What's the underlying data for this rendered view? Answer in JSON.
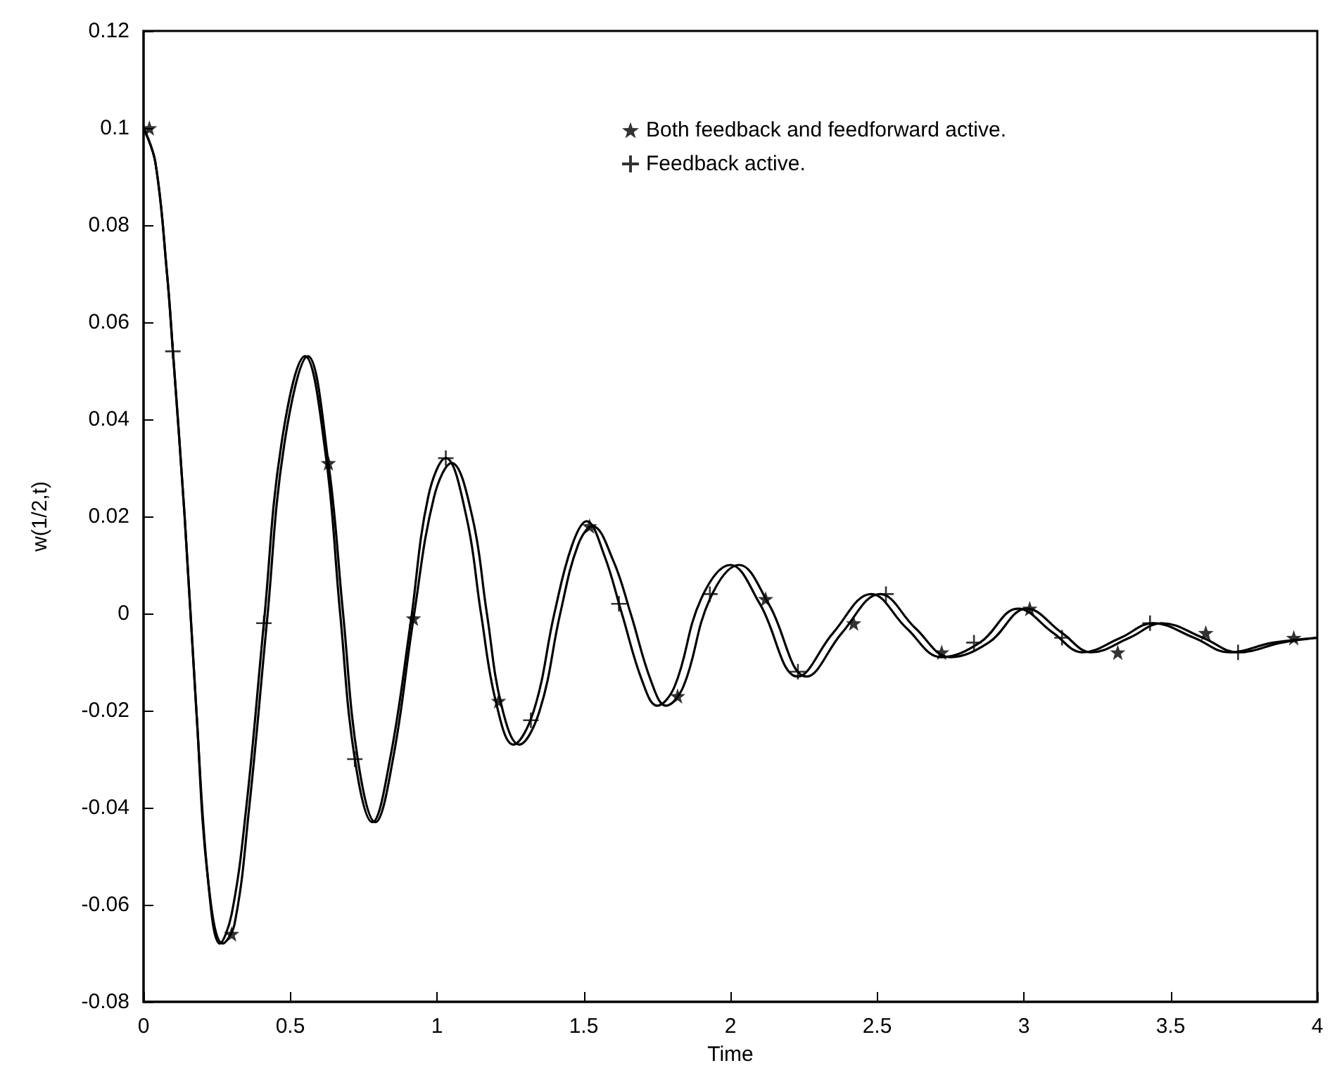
{
  "chart_data": {
    "type": "line",
    "xlabel": "Time",
    "ylabel": "w(1/2,t)",
    "xlim": [
      0,
      4
    ],
    "xticks": [
      0,
      0.5,
      1,
      1.5,
      2,
      2.5,
      3,
      3.5,
      4
    ],
    "ylim": [
      -0.08,
      0.12
    ],
    "yticks": [
      -0.08,
      -0.06,
      -0.04,
      -0.02,
      0,
      0.02,
      0.04,
      0.06,
      0.08,
      0.1,
      0.12
    ],
    "grid": false,
    "legend": "top right",
    "series": [
      {
        "type": "line",
        "color": "#000000",
        "marker": "none",
        "line_style": "solid",
        "x": [
          0,
          0.04,
          0.08,
          0.1,
          0.14,
          0.18,
          0.22,
          0.27,
          0.31,
          0.36,
          0.42,
          0.48,
          0.56,
          0.63,
          0.68,
          0.73,
          0.79,
          0.85,
          0.92,
          0.99,
          1.05,
          1.12,
          1.17,
          1.22,
          1.28,
          1.35,
          1.42,
          1.48,
          1.53,
          1.6,
          1.66,
          1.73,
          1.78,
          1.84,
          1.93,
          2.03,
          2.13,
          2.26,
          2.38,
          2.51,
          2.63,
          2.75,
          2.88,
          3.01,
          3.13,
          3.23,
          3.36,
          3.47,
          3.61,
          3.73,
          3.88,
          4
        ],
        "values": [
          0.1,
          0.093,
          0.07,
          0.054,
          0.02,
          -0.02,
          -0.055,
          -0.068,
          -0.064,
          -0.04,
          -0.002,
          0.035,
          0.053,
          0.031,
          0,
          -0.03,
          -0.043,
          -0.03,
          -0.001,
          0.024,
          0.031,
          0.02,
          0,
          -0.019,
          -0.027,
          -0.02,
          0,
          0.014,
          0.018,
          0.011,
          0,
          -0.014,
          -0.019,
          -0.015,
          0.003,
          0.01,
          0.002,
          -0.013,
          -0.004,
          0.004,
          -0.003,
          -0.009,
          -0.006,
          0.001,
          -0.004,
          -0.008,
          -0.005,
          -0.002,
          -0.005,
          -0.008,
          -0.006,
          -0.005
        ]
      },
      {
        "type": "line",
        "color": "#000000",
        "marker": "none",
        "line_style": "solid",
        "x": [
          0,
          0.04,
          0.08,
          0.1,
          0.14,
          0.18,
          0.22,
          0.26,
          0.3,
          0.35,
          0.41,
          0.47,
          0.55,
          0.62,
          0.67,
          0.72,
          0.78,
          0.84,
          0.91,
          0.97,
          1.03,
          1.1,
          1.15,
          1.2,
          1.26,
          1.33,
          1.4,
          1.46,
          1.51,
          1.57,
          1.63,
          1.7,
          1.75,
          1.81,
          1.9,
          2,
          2.1,
          2.23,
          2.35,
          2.48,
          2.6,
          2.72,
          2.85,
          2.98,
          3.1,
          3.2,
          3.33,
          3.44,
          3.58,
          3.7,
          3.85,
          4
        ],
        "values": [
          0.1,
          0.093,
          0.07,
          0.054,
          0.02,
          -0.02,
          -0.055,
          -0.068,
          -0.062,
          -0.04,
          -0.002,
          0.035,
          0.053,
          0.033,
          0,
          -0.03,
          -0.043,
          -0.03,
          -0.002,
          0.024,
          0.032,
          0.02,
          0,
          -0.018,
          -0.027,
          -0.02,
          0,
          0.014,
          0.019,
          0.012,
          0,
          -0.014,
          -0.019,
          -0.015,
          0.003,
          0.01,
          0.002,
          -0.013,
          -0.004,
          0.004,
          -0.003,
          -0.009,
          -0.006,
          0.001,
          -0.004,
          -0.008,
          -0.005,
          -0.002,
          -0.005,
          -0.008,
          -0.006,
          -0.005
        ]
      },
      {
        "type": "scatter",
        "name": "Both feedback and feedforward active.",
        "color": "#000000",
        "marker": "star",
        "x": [
          0.02,
          0.3,
          0.63,
          0.92,
          1.21,
          1.52,
          1.82,
          2.12,
          2.42,
          2.72,
          3.02,
          3.32,
          3.62,
          3.92
        ],
        "values": [
          0.1,
          -0.066,
          0.031,
          -0.001,
          -0.018,
          0.018,
          -0.017,
          0.003,
          -0.002,
          -0.008,
          0.001,
          -0.008,
          -0.004,
          -0.005
        ]
      },
      {
        "type": "scatter",
        "name": "Feedback active.",
        "color": "#000000",
        "marker": "cross",
        "x": [
          0.1,
          0.41,
          0.72,
          1.03,
          1.32,
          1.62,
          1.93,
          2.23,
          2.53,
          2.83,
          3.13,
          3.43,
          3.73
        ],
        "values": [
          0.054,
          -0.002,
          -0.03,
          0.032,
          -0.022,
          0.002,
          0.004,
          -0.012,
          0.004,
          -0.006,
          -0.005,
          -0.002,
          -0.008
        ]
      }
    ]
  }
}
